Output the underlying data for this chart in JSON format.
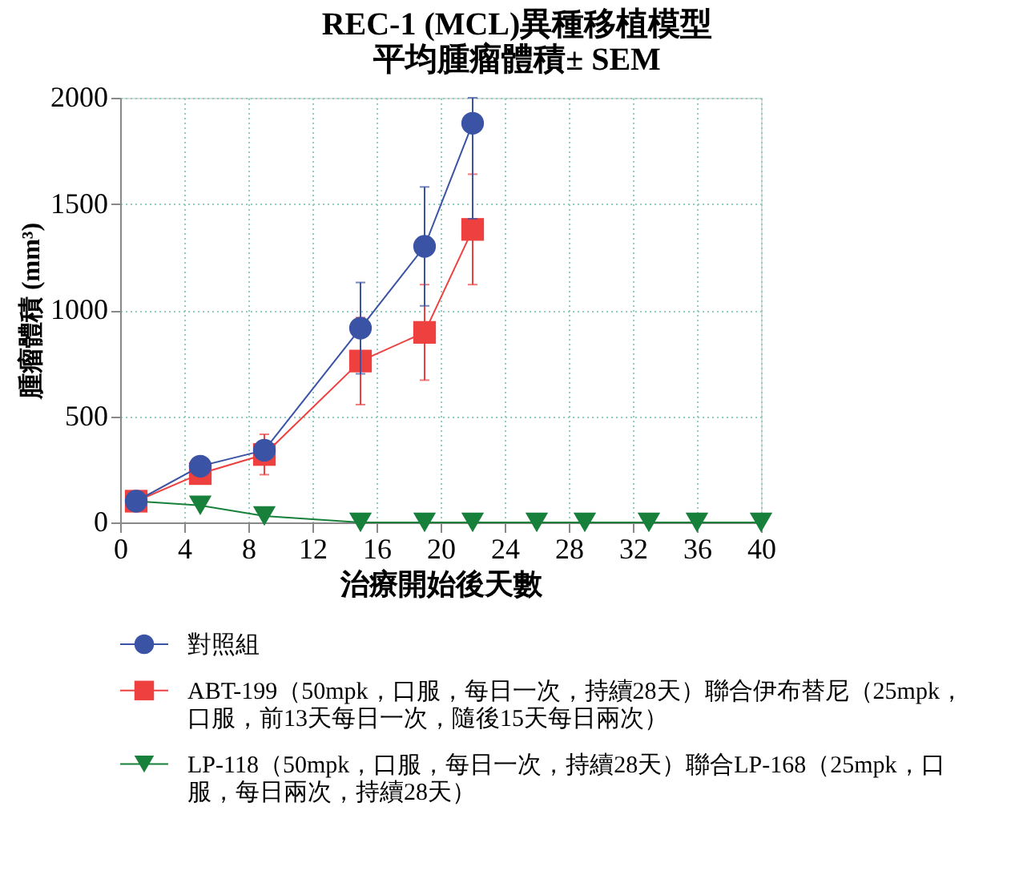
{
  "chart_data": {
    "type": "line",
    "title": [
      "REC-1 (MCL)異種移植模型",
      "平均腫瘤體積± SEM"
    ],
    "xlabel": "治療開始後天數",
    "ylabel": "腫瘤體積 (mm³)",
    "xlim": [
      0,
      40
    ],
    "xticks": [
      0,
      4,
      8,
      12,
      16,
      20,
      24,
      28,
      32,
      36,
      40
    ],
    "ylim": [
      0,
      2000
    ],
    "yticks": [
      0,
      500,
      1000,
      1500,
      2000
    ],
    "grid": true,
    "legend": "bottom",
    "line_style": "solid",
    "series": [
      {
        "name": "對照組",
        "color": "#3a53a4",
        "marker": "circle",
        "x": [
          1,
          5,
          9,
          15,
          19,
          22
        ],
        "values": [
          100,
          265,
          340,
          915,
          1300,
          1880
        ],
        "errors": [
          null,
          null,
          40,
          215,
          280,
          [
            1430,
            2000
          ]
        ]
      },
      {
        "name": "ABT-199（50mpk，口服，每日一次，持續28天）聯合伊布替尼（25mpk，口服，前13天每日一次，隨後15天每日兩次）",
        "color": "#ef4040",
        "marker": "square",
        "x": [
          1,
          5,
          9,
          15,
          19,
          22
        ],
        "values": [
          100,
          230,
          320,
          760,
          895,
          1380
        ],
        "errors": [
          null,
          null,
          95,
          205,
          225,
          260
        ]
      },
      {
        "name": "LP-118（50mpk，口服，每日一次，持續28天）聯合LP-168（25mpk，口服，每日兩次，持續28天）",
        "color": "#17803a",
        "marker": "triangle",
        "x": [
          1,
          5,
          9,
          15,
          19,
          22,
          26,
          29,
          33,
          36,
          40
        ],
        "values": [
          100,
          80,
          30,
          0,
          0,
          0,
          0,
          0,
          0,
          0,
          0
        ]
      }
    ]
  }
}
